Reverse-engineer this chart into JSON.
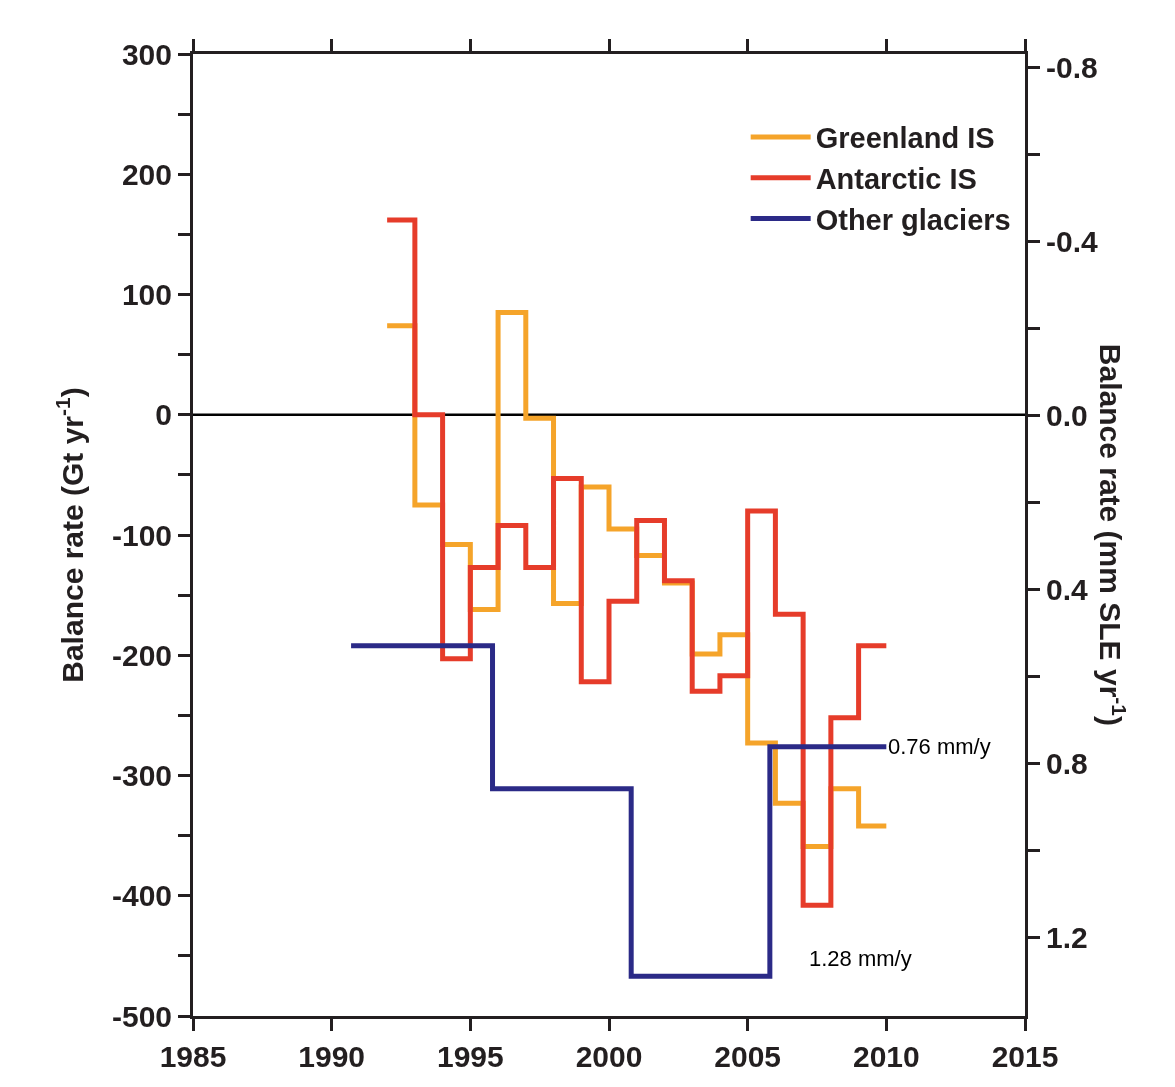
{
  "chart_data": {
    "type": "step",
    "ylabel": "Balance rate (Gt yr$^{-1}$)",
    "y2label": "Balance rate (mm SLE yr$^{-1}$)",
    "xlim": [
      1985,
      2015
    ],
    "xticks": [
      1985,
      1990,
      1995,
      2000,
      2005,
      2010,
      2015
    ],
    "ylim": [
      -500,
      300
    ],
    "yticks": [
      300,
      {
        "value": 250,
        "label": null
      },
      200,
      {
        "value": 150,
        "label": null
      },
      100,
      {
        "value": 50,
        "label": null
      },
      0,
      {
        "value": -50,
        "label": null
      },
      -100,
      {
        "value": -150,
        "label": null
      },
      -200,
      {
        "value": -250,
        "label": null
      },
      -300,
      {
        "value": -350,
        "label": null
      },
      -400,
      {
        "value": -450,
        "label": null
      },
      -500
    ],
    "y2lim": [
      1.38,
      -0.83
    ],
    "y2ticks": [
      -0.8,
      {
        "value": -0.6,
        "label": null
      },
      -0.4,
      {
        "value": -0.2,
        "label": null
      },
      {
        "value": 0,
        "label": "0.0"
      },
      {
        "value": 0.2,
        "label": null
      },
      0.4,
      {
        "value": 0.6,
        "label": null
      },
      0.8,
      {
        "value": 1.0,
        "label": null
      },
      1.2
    ],
    "series": [
      {
        "name": "Greenland IS",
        "color": "#f5a42a",
        "x": [
          1992,
          1993,
          1994,
          1995,
          1996,
          1997,
          1998,
          1999,
          2000,
          2001,
          2002,
          2003,
          2004,
          2005,
          2006,
          2007,
          2008,
          2009,
          2010
        ],
        "values": [
          74,
          -75,
          -108,
          -162,
          85,
          -3,
          -157,
          -60,
          -95,
          -117,
          -140,
          -199,
          -183,
          -273,
          -323,
          -359,
          -311,
          -342,
          -342
        ]
      },
      {
        "name": "Antarctic IS",
        "color": "#e63c2a",
        "x": [
          1992,
          1993,
          1994,
          1995,
          1996,
          1997,
          1998,
          1999,
          2000,
          2001,
          2002,
          2003,
          2004,
          2005,
          2006,
          2007,
          2008,
          2009,
          2010
        ],
        "values": [
          162,
          0,
          -203,
          -127,
          -92,
          -127,
          -53,
          -222,
          -155,
          -88,
          -138,
          -230,
          -217,
          -80,
          -166,
          -408,
          -252,
          -192,
          -192
        ]
      },
      {
        "name": "Other glaciers",
        "color": "#2b2a87",
        "x": [
          1990.7,
          1995.8,
          2000.8,
          2005.8,
          2010
        ],
        "values": [
          -192,
          -311,
          -467,
          -276,
          -276
        ]
      }
    ],
    "ref_lines": [
      {
        "axis": "y",
        "value": 0,
        "color": "#000000"
      }
    ],
    "annotations": [
      {
        "text": "0.76 mm/y",
        "x": 2010,
        "y": -276
      },
      "1.28 mm/y"
    ],
    "legend": "top right",
    "grid": false
  }
}
